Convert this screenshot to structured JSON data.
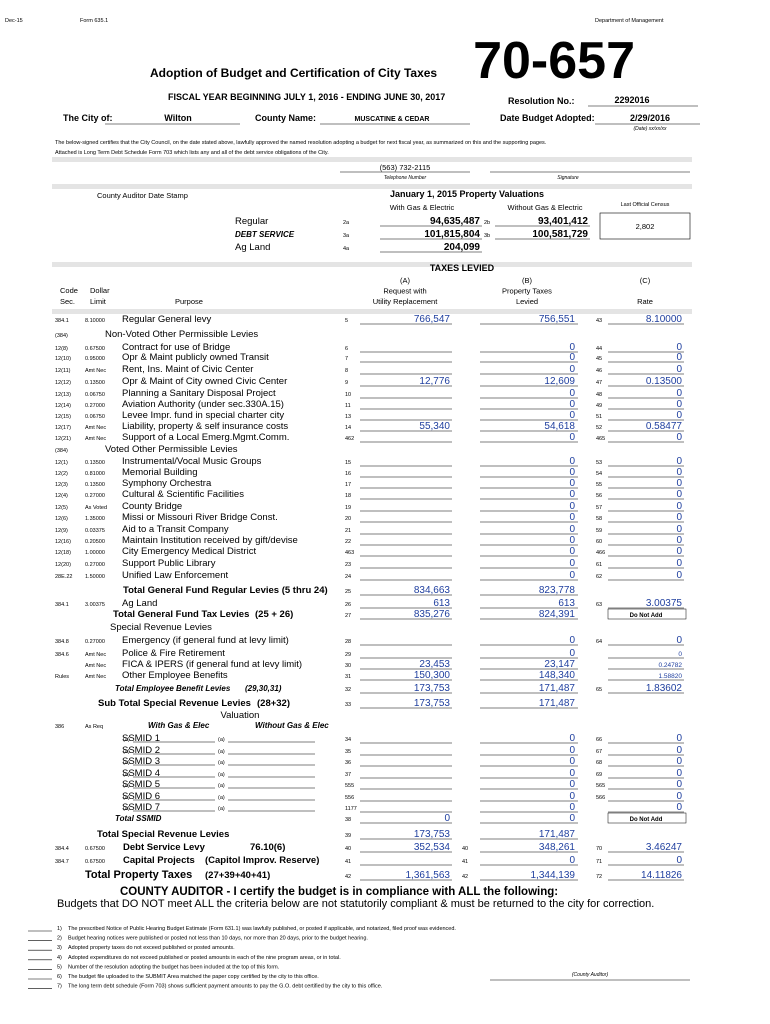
{
  "header": {
    "date": "Dec-15",
    "form": "Form 635.1",
    "department": "Department of Management",
    "form_number": "70-657",
    "title": "Adoption of Budget and Certification of City Taxes",
    "fiscal_year": "FISCAL YEAR BEGINNING JULY 1, 2016 - ENDING JUNE 30, 2017",
    "resolution_label": "Resolution No.:",
    "resolution_no": "2292016",
    "city_label": "The City of:",
    "city": "Wilton",
    "county_label": "County Name:",
    "county": "MUSCATINE & CEDAR",
    "date_adopted_label": "Date Budget Adopted:",
    "date_adopted": "2/29/2016",
    "date_format": "(Date) xx/xx/xx",
    "paragraph": [
      "The below-signed certifies that the City Council, on the date stated above, lawfully approved the named resolution adopting a budget for next fiscal year, as summarized on this and the supporting pages.",
      "Attached is Long Term Debt Schedule Form 703 which lists any and all of the debt service obligations of the City."
    ],
    "phone": "(563) 732-2115",
    "phone_label": "Telephone Number",
    "signature_label": "Signature"
  },
  "valuations": {
    "stamp_label": "County Auditor Date Stamp",
    "title": "January 1, 2015 Property Valuations",
    "with_label": "With Gas & Electric",
    "without_label": "Without Gas & Electric",
    "census_label": "Last Official Census",
    "census": "2,802",
    "rows": [
      {
        "label": "Regular",
        "line_a": "2a",
        "with": "94,635,487",
        "line_b": "2b",
        "without": "93,401,412"
      },
      {
        "label": "DEBT SERVICE",
        "line_a": "3a",
        "with": "101,815,804",
        "line_b": "3b",
        "without": "100,581,729"
      },
      {
        "label": "Ag Land",
        "line_a": "4a",
        "with": "204,099"
      }
    ]
  },
  "taxes": {
    "title": "TAXES LEVIED",
    "col_a": [
      "(A)",
      "Request with",
      "Utility Replacement"
    ],
    "col_b": [
      "(B)",
      "Property Taxes",
      "Levied"
    ],
    "col_c": [
      "(C)",
      "Rate"
    ],
    "code_head": [
      "Code",
      "Sec."
    ],
    "limit_head": [
      "Dollar",
      "Limit"
    ],
    "purpose_head": "Purpose"
  },
  "rows": [
    {
      "code": "384.1",
      "limit": "8.10000",
      "purpose": "Regular General levy",
      "line": "5",
      "a": "766,547",
      "b": "756,551",
      "cline": "43",
      "rate": "8.10000"
    },
    {
      "code": "(384)",
      "section": "Non-Voted  Other Permissible Levies"
    },
    {
      "code": "12(8)",
      "limit": "0.67500",
      "purpose": "Contract for use of Bridge",
      "line": "6",
      "b": "0",
      "cline": "44",
      "rate": "0"
    },
    {
      "code": "12(10)",
      "limit": "0.95000",
      "purpose": "Opr & Maint publicly owned Transit",
      "line": "7",
      "b": "0",
      "cline": "45",
      "rate": "0"
    },
    {
      "code": "12(11)",
      "limit": "Amt Nec",
      "purpose": "Rent, Ins. Maint of Civic Center",
      "line": "8",
      "b": "0",
      "cline": "46",
      "rate": "0"
    },
    {
      "code": "12(12)",
      "limit": "0.13500",
      "purpose": "Opr & Maint of City owned Civic Center",
      "line": "9",
      "a": "12,776",
      "b": "12,609",
      "cline": "47",
      "rate": "0.13500"
    },
    {
      "code": "12(13)",
      "limit": "0.06750",
      "purpose": "Planning a Sanitary Disposal Project",
      "line": "10",
      "b": "0",
      "cline": "48",
      "rate": "0"
    },
    {
      "code": "12(14)",
      "limit": "0.27000",
      "purpose": "Aviation Authority (under sec.330A.15)",
      "line": "11",
      "b": "0",
      "cline": "49",
      "rate": "0"
    },
    {
      "code": "12(15)",
      "limit": "0.06750",
      "purpose": "Levee Impr. fund in special charter city",
      "line": "13",
      "b": "0",
      "cline": "51",
      "rate": "0"
    },
    {
      "code": "12(17)",
      "limit": "Amt Nec",
      "purpose": "Liability, property & self insurance costs",
      "line": "14",
      "a": "55,340",
      "b": "54,618",
      "cline": "52",
      "rate": "0.58477"
    },
    {
      "code": "12(21)",
      "limit": "Amt Nec",
      "purpose": "Support of a Local  Emerg.Mgmt.Comm.",
      "line": "462",
      "b": "0",
      "cline": "465",
      "rate": "0"
    },
    {
      "code": "(384)",
      "section": "Voted   Other Permissible Levies"
    },
    {
      "code": "12(1)",
      "limit": "0.13500",
      "purpose": "Instrumental/Vocal Music Groups",
      "line": "15",
      "b": "0",
      "cline": "53",
      "rate": "0"
    },
    {
      "code": "12(2)",
      "limit": "0.81000",
      "purpose": "Memorial Building",
      "line": "16",
      "b": "0",
      "cline": "54",
      "rate": "0"
    },
    {
      "code": "12(3)",
      "limit": "0.13500",
      "purpose": "Symphony Orchestra",
      "line": "17",
      "b": "0",
      "cline": "55",
      "rate": "0"
    },
    {
      "code": "12(4)",
      "limit": "0.27000",
      "purpose": "Cultural & Scientific Facilities",
      "line": "18",
      "b": "0",
      "cline": "56",
      "rate": "0"
    },
    {
      "code": "12(5)",
      "limit": "As Voted",
      "purpose": "County Bridge",
      "line": "19",
      "b": "0",
      "cline": "57",
      "rate": "0"
    },
    {
      "code": "12(6)",
      "limit": "1.35000",
      "purpose": "Missi or Missouri River Bridge Const.",
      "line": "20",
      "b": "0",
      "cline": "58",
      "rate": "0"
    },
    {
      "code": "12(9)",
      "limit": "0.03375",
      "purpose": "Aid to a Transit Company",
      "line": "21",
      "b": "0",
      "cline": "59",
      "rate": "0"
    },
    {
      "code": "12(16)",
      "limit": "0.20500",
      "purpose": "Maintain Institution received by gift/devise",
      "line": "22",
      "b": "0",
      "cline": "60",
      "rate": "0"
    },
    {
      "code": "12(18)",
      "limit": "1.00000",
      "purpose": "City Emergency Medical District",
      "line": "463",
      "b": "0",
      "cline": "466",
      "rate": "0"
    },
    {
      "code": "12(20)",
      "limit": "0.27000",
      "purpose": "Support Public Library",
      "line": "23",
      "b": "0",
      "cline": "61",
      "rate": "0"
    },
    {
      "code": "28E.22",
      "limit": "1.50000",
      "purpose": "Unified Law Enforcement",
      "line": "24",
      "b": "0",
      "cline": "62",
      "rate": "0"
    },
    {
      "total": "Total General Fund Regular Levies (5 thru 24)",
      "line": "25",
      "a": "834,663",
      "b": "823,778"
    },
    {
      "code": "384.1",
      "limit": "3.00375",
      "purpose": "Ag Land",
      "line": "26",
      "a": "613",
      "b": "613",
      "cline": "63",
      "rate": "3.00375"
    },
    {
      "total": "Total General Fund Tax Levies",
      "extra": "(25 + 26)",
      "line": "27",
      "a": "835,276",
      "b": "824,391",
      "note": "Do Not Add"
    },
    {
      "section": "Special Revenue Levies"
    },
    {
      "code": "384.8",
      "limit": "0.27000",
      "purpose": "Emergency (if general fund at levy limit)",
      "line": "28",
      "b": "0",
      "cline": "64",
      "rate": "0"
    },
    {
      "code": "384.6",
      "limit": "Amt Nec",
      "purpose": "Police & Fire Retirement",
      "line": "29",
      "b": "0",
      "rate": "0"
    },
    {
      "limit": "Amt Nec",
      "purpose": "FICA & IPERS (if general fund at levy limit)",
      "line": "30",
      "a": "23,453",
      "b": "23,147",
      "rate": "0.24782"
    },
    {
      "code": "Rules",
      "limit": "Amt Nec",
      "purpose": "Other Employee Benefits",
      "line": "31",
      "a": "150,300",
      "b": "148,340",
      "rate": "1.58820"
    },
    {
      "total": "Total Employee Benefit Levies",
      "extra": "(29,30,31)",
      "line": "32",
      "a": "173,753",
      "b": "171,487",
      "cline": "65",
      "rate": "1.83602"
    },
    {
      "total": "Sub Total Special Revenue Levies",
      "extra": "(28+32)",
      "line": "33",
      "a": "173,753",
      "b": "171,487"
    },
    {
      "caption": "Valuation"
    },
    {
      "code": "386",
      "limit": "As Req",
      "with_label": "With Gas & Elec",
      "without_label": "Without Gas & Elec"
    },
    {
      "purpose": "SSMID 1",
      "va": "(a)",
      "vb": "(a)",
      "line": "34",
      "b": "0",
      "cline": "66",
      "rate": "0"
    },
    {
      "purpose": "SSMID 2",
      "va": "(a)",
      "vb": "(a)",
      "line": "35",
      "b": "0",
      "cline": "67",
      "rate": "0"
    },
    {
      "purpose": "SSMID 3",
      "va": "(a)",
      "vb": "(a)",
      "line": "36",
      "b": "0",
      "cline": "68",
      "rate": "0"
    },
    {
      "purpose": "SSMID 4",
      "va": "(a)",
      "vb": "(a)",
      "line": "37",
      "b": "0",
      "cline": "69",
      "rate": "0"
    },
    {
      "purpose": "SSMID 5",
      "va": "(a)",
      "vb": "(a)",
      "line": "555",
      "b": "0",
      "cline": "565",
      "rate": "0"
    },
    {
      "purpose": "SSMID 6",
      "va": "(a)",
      "vb": "(a)",
      "line": "556",
      "b": "0",
      "cline": "566",
      "rate": "0"
    },
    {
      "purpose": "SSMID 7",
      "va": "(a)",
      "vb": "(a)",
      "line": "1177",
      "b": "0",
      "rate": "0"
    },
    {
      "total": "Total SSMID",
      "line": "38",
      "a": "0",
      "b": "0",
      "note": "Do Not Add"
    },
    {
      "total": "Total Special Revenue Levies",
      "line": "39",
      "a": "173,753",
      "b": "171,487"
    },
    {
      "code": "384.4",
      "limit": "0.67500",
      "total": "Debt Service Levy",
      "extra": "76.10(6)",
      "line": "40",
      "a": "352,534",
      "aline": "40",
      "b": "348,261",
      "cline": "70",
      "rate": "3.46247"
    },
    {
      "code": "384.7",
      "limit": "0.67500",
      "total": "Capital Projects",
      "extra": "(Capitol Improv. Reserve)",
      "line": "41",
      "aline": "41",
      "b": "0",
      "cline": "71",
      "rate": "0"
    },
    {
      "total": "Total Property Taxes",
      "extra": "(27+39+40+41)",
      "line": "42",
      "a": "1,361,563",
      "aline": "42",
      "b": "1,344,139",
      "cline": "72",
      "rate": "14.11826"
    }
  ],
  "certification": {
    "line1": "COUNTY AUDITOR  -  I certify the budget is in compliance with ALL the following:",
    "line2": "Budgets that DO NOT meet ALL the criteria below are not statutorily compliant & must be returned to the city for correction.",
    "items": [
      {
        "n": "1)",
        "text": "The prescribed Notice of Public Hearing Budget Estimate (Form 631.1) was lawfully published, or posted if applicable, and notarized, filed proof was evidenced."
      },
      {
        "n": "2)",
        "text": "Budget hearing notices were published or posted not less than 10 days, nor more than 20 days, prior to the budget hearing."
      },
      {
        "n": "3)",
        "text": "Adopted property taxes do not exceed published or posted amounts."
      },
      {
        "n": "4)",
        "text": "Adopted expenditures do not exceed published or posted amounts in each of the nine program areas, or in total."
      },
      {
        "n": "5)",
        "text": "Number of the resolution adopting the budget has been included at the top of this form."
      },
      {
        "n": "6)",
        "text": "The budget file uploaded to the SUBMIT Area matched the paper copy certified by the city to this office."
      },
      {
        "n": "7)",
        "text": "The long term debt schedule (Form 703) shows sufficient payment amounts to pay the G.O. debt certified by the city to this office."
      }
    ],
    "auditor_label": "(County Auditor)"
  }
}
